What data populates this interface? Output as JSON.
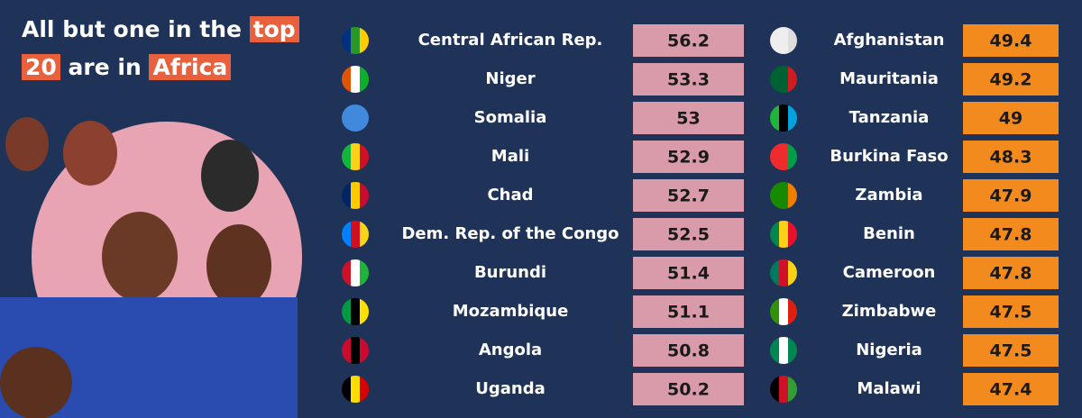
{
  "header": {
    "title": [
      "All but one in the",
      "top",
      "20",
      "are in",
      "Africa"
    ]
  },
  "table": {
    "columns": [
      {
        "rows": [
          {
            "country": "Central African Rep.",
            "value": 56.2
          },
          {
            "country": "Niger",
            "value": 53.3
          },
          {
            "country": "Somalia",
            "value": 53
          },
          {
            "country": "Mali",
            "value": 52.9
          },
          {
            "country": "Chad",
            "value": 52.7
          },
          {
            "country": "Dem. Rep. of the Congo",
            "value": 52.5
          },
          {
            "country": "Burundi",
            "value": 51.4
          },
          {
            "country": "Mozambique",
            "value": 51.1
          },
          {
            "country": "Angola",
            "value": 50.8
          },
          {
            "country": "Uganda",
            "value": 50.2
          }
        ]
      },
      {
        "rows": [
          {
            "country": "Afghanistan",
            "value": 49.4
          },
          {
            "country": "Mauritania",
            "value": 49.2
          },
          {
            "country": "Tanzania",
            "value": 49
          },
          {
            "country": "Burkina Faso",
            "value": 48.3
          },
          {
            "country": "Zambia",
            "value": 47.9
          },
          {
            "country": "Benin",
            "value": 47.8
          },
          {
            "country": "Cameroon",
            "value": 47.8
          },
          {
            "country": "Zimbabwe",
            "value": 47.5
          },
          {
            "country": "Nigeria",
            "value": 47.5
          },
          {
            "country": "Malawi",
            "value": 47.4
          }
        ]
      }
    ]
  }
}
